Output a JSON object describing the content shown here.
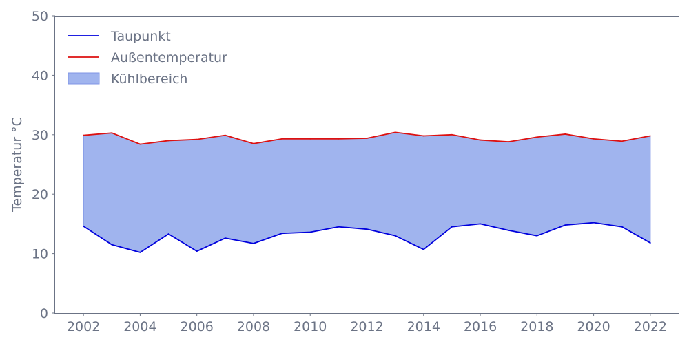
{
  "chart_data": {
    "type": "line",
    "title": "",
    "xlabel": "",
    "ylabel": "Temperatur °C",
    "xlim": [
      2001,
      2023
    ],
    "ylim": [
      0,
      50
    ],
    "x_ticks": [
      "2002",
      "2004",
      "2006",
      "2008",
      "2010",
      "2012",
      "2014",
      "2016",
      "2018",
      "2020",
      "2022"
    ],
    "y_ticks": [
      "0",
      "10",
      "20",
      "30",
      "40",
      "50"
    ],
    "grid": false,
    "legend_position": "top-left",
    "x": [
      2002,
      2003,
      2004,
      2005,
      2006,
      2007,
      2008,
      2009,
      2010,
      2011,
      2012,
      2013,
      2014,
      2015,
      2016,
      2017,
      2018,
      2019,
      2020,
      2021,
      2022
    ],
    "series": [
      {
        "name": "Taupunkt",
        "color": "#0000dd",
        "values": [
          14.6,
          11.5,
          10.2,
          13.3,
          10.4,
          12.6,
          11.7,
          13.4,
          13.6,
          14.5,
          14.1,
          13.0,
          10.7,
          14.5,
          15.0,
          13.9,
          13.0,
          14.8,
          15.2,
          14.5,
          11.8
        ]
      },
      {
        "name": "Außentemperatur",
        "color": "#dd1111",
        "values": [
          29.9,
          30.3,
          28.4,
          29.0,
          29.2,
          29.9,
          28.5,
          29.3,
          29.3,
          29.3,
          29.4,
          30.4,
          29.8,
          30.0,
          29.1,
          28.8,
          29.6,
          30.1,
          29.3,
          28.9,
          29.8
        ]
      }
    ],
    "fill_between": {
      "name": "Kühlbereich",
      "color": "#a0b4ee",
      "edge_color": "#7f95e6",
      "lower_series": "Taupunkt",
      "upper_series": "Außentemperatur"
    }
  }
}
